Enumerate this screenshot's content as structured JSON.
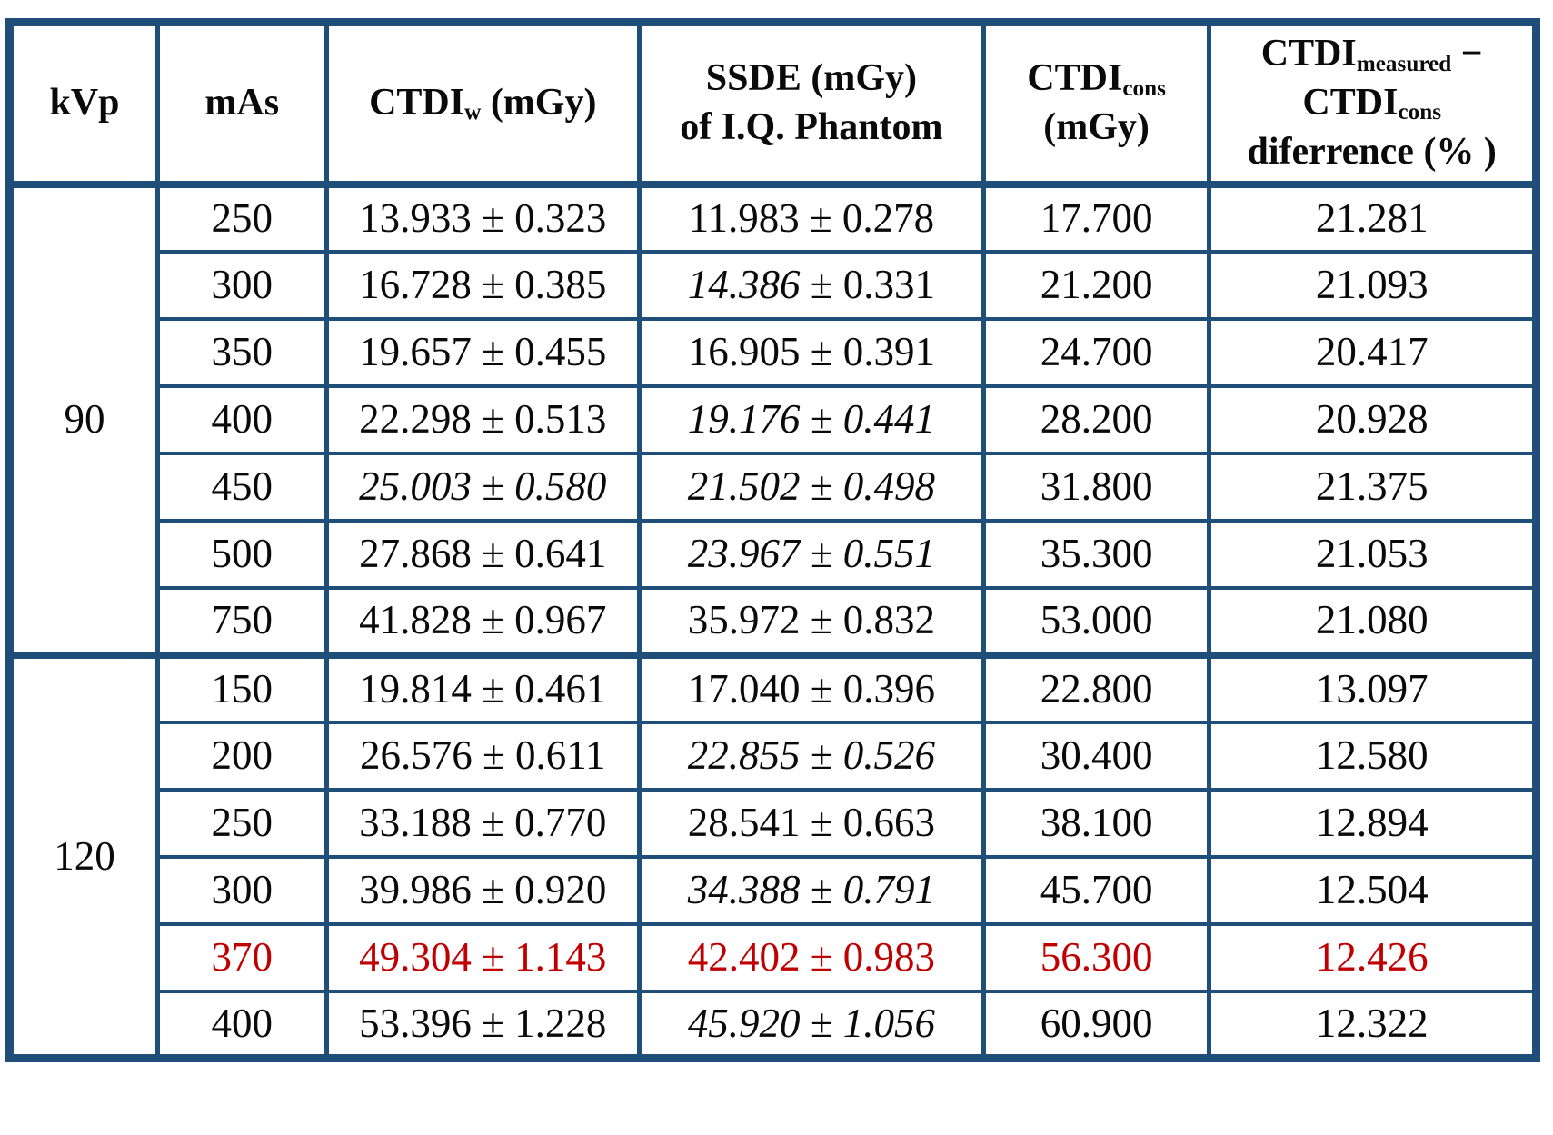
{
  "colors": {
    "border": "#1f4e79",
    "highlight": "#c00000",
    "text": "#0a0a0a"
  },
  "table": {
    "columns": [
      {
        "key": "kvp"
      },
      {
        "key": "mas"
      },
      {
        "key": "ctdiw"
      },
      {
        "key": "ssde"
      },
      {
        "key": "ctdicons"
      },
      {
        "key": "diff"
      }
    ],
    "header": {
      "kvp": [
        [
          {
            "t": "kVp"
          }
        ]
      ],
      "mas": [
        [
          {
            "t": "mAs"
          }
        ]
      ],
      "ctdiw": [
        [
          {
            "t": "CTDI"
          },
          {
            "t": "w",
            "sub": true
          },
          {
            "t": " (mGy)"
          }
        ]
      ],
      "ssde": [
        [
          {
            "t": "SSDE (mGy)"
          }
        ],
        [
          {
            "t": "of I.Q. Phantom"
          }
        ]
      ],
      "ctdicons": [
        [
          {
            "t": "CTDI"
          },
          {
            "t": "cons",
            "sub": true
          }
        ],
        [
          {
            "t": "(mGy)"
          }
        ]
      ],
      "diff": [
        [
          {
            "t": "CTDI"
          },
          {
            "t": "measured",
            "sub": true
          },
          {
            "t": " −"
          }
        ],
        [
          {
            "t": "CTDI"
          },
          {
            "t": "cons",
            "sub": true
          }
        ],
        [
          {
            "t": "diferrence (% )"
          }
        ]
      ]
    },
    "groups": [
      {
        "kvp": "90",
        "rows": [
          {
            "mas": "250",
            "ctdiw": [
              {
                "t": "13.933 ± 0.323"
              }
            ],
            "ssde": [
              {
                "t": "11.983 ± 0.278"
              }
            ],
            "cons": "17.700",
            "diff": "21.281",
            "highlight": false
          },
          {
            "mas": "300",
            "ctdiw": [
              {
                "t": "16.728 ± 0.385"
              }
            ],
            "ssde": [
              {
                "t": "14.386",
                "i": true
              },
              {
                "t": " ± 0.331"
              }
            ],
            "cons": "21.200",
            "diff": "21.093",
            "highlight": false
          },
          {
            "mas": "350",
            "ctdiw": [
              {
                "t": "19.657 ± 0.455"
              }
            ],
            "ssde": [
              {
                "t": "16.905 ± 0.391"
              }
            ],
            "cons": "24.700",
            "diff": "20.417",
            "highlight": false
          },
          {
            "mas": "400",
            "ctdiw": [
              {
                "t": "22.298 ± 0.513"
              }
            ],
            "ssde": [
              {
                "t": "19.176 ± 0.441",
                "i": true
              }
            ],
            "cons": "28.200",
            "diff": "20.928",
            "highlight": false
          },
          {
            "mas": "450",
            "ctdiw": [
              {
                "t": "25.003 ± 0.580",
                "i": true
              }
            ],
            "ssde": [
              {
                "t": "21.502 ± 0.498",
                "i": true
              }
            ],
            "cons": "31.800",
            "diff": "21.375",
            "highlight": false
          },
          {
            "mas": "500",
            "ctdiw": [
              {
                "t": "27.868 ± 0.641"
              }
            ],
            "ssde": [
              {
                "t": "23.967 ± 0.551",
                "i": true
              }
            ],
            "cons": "35.300",
            "diff": "21.053",
            "highlight": false
          },
          {
            "mas": "750",
            "ctdiw": [
              {
                "t": "41.828 ± 0.967"
              }
            ],
            "ssde": [
              {
                "t": "35.972 ± 0.832"
              }
            ],
            "cons": "53.000",
            "diff": "21.080",
            "highlight": false
          }
        ]
      },
      {
        "kvp": "120",
        "rows": [
          {
            "mas": "150",
            "ctdiw": [
              {
                "t": "19.814 ± 0.461"
              }
            ],
            "ssde": [
              {
                "t": "17.040 ± 0.396"
              }
            ],
            "cons": "22.800",
            "diff": "13.097",
            "highlight": false
          },
          {
            "mas": "200",
            "ctdiw": [
              {
                "t": "26.576 ± 0.611"
              }
            ],
            "ssde": [
              {
                "t": "22.855 ± 0.526",
                "i": true
              }
            ],
            "cons": "30.400",
            "diff": "12.580",
            "highlight": false
          },
          {
            "mas": "250",
            "ctdiw": [
              {
                "t": "33.188 ± 0.770"
              }
            ],
            "ssde": [
              {
                "t": "28.541 ± 0.663"
              }
            ],
            "cons": "38.100",
            "diff": "12.894",
            "highlight": false
          },
          {
            "mas": "300",
            "ctdiw": [
              {
                "t": "39.986 ± 0.920"
              }
            ],
            "ssde": [
              {
                "t": "34.388 ± 0.791",
                "i": true
              }
            ],
            "cons": "45.700",
            "diff": "12.504",
            "highlight": false
          },
          {
            "mas": "370",
            "ctdiw": [
              {
                "t": "49.304 ± 1.143"
              }
            ],
            "ssde": [
              {
                "t": "42.402 ± 0.983"
              }
            ],
            "cons": "56.300",
            "diff": "12.426",
            "highlight": true
          },
          {
            "mas": "400",
            "ctdiw": [
              {
                "t": "53.396 ± 1.228"
              }
            ],
            "ssde": [
              {
                "t": "45.920 ± 1.056",
                "i": true
              }
            ],
            "cons": "60.900",
            "diff": "12.322",
            "highlight": false
          }
        ]
      }
    ]
  }
}
